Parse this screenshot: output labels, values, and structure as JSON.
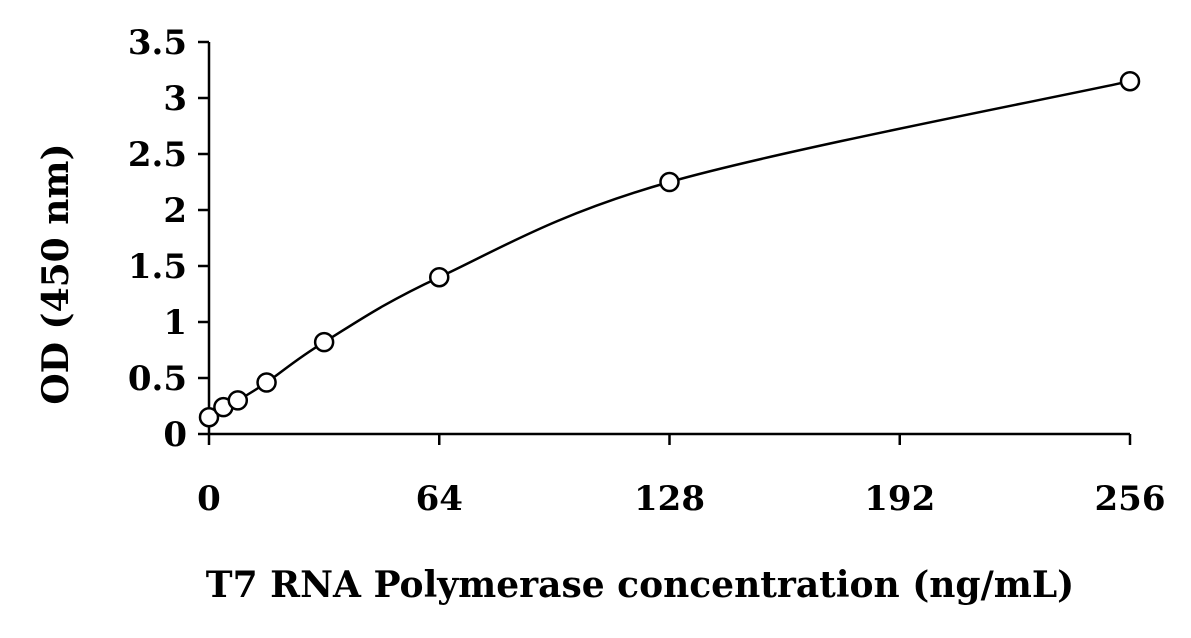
{
  "chart_data": {
    "type": "scatter",
    "xlabel": "T7 RNA Polymerase concentration (ng/mL)",
    "ylabel": "OD (450 nm)",
    "xlim": [
      0,
      256
    ],
    "ylim": [
      0,
      3.5
    ],
    "x_ticks": [
      0,
      64,
      128,
      192,
      256
    ],
    "x_tick_labels": [
      "0",
      "64",
      "128",
      "192",
      "256"
    ],
    "y_ticks": [
      0,
      0.5,
      1,
      1.5,
      2,
      2.5,
      3,
      3.5
    ],
    "y_tick_labels": [
      "0",
      "0.5",
      "1",
      "1.5",
      "2",
      "2.5",
      "3",
      "3.5"
    ],
    "grid": false,
    "series": [
      {
        "x": [
          0,
          4,
          8,
          16,
          32,
          64,
          128,
          256
        ],
        "y": [
          0.15,
          0.24,
          0.3,
          0.46,
          0.82,
          1.4,
          2.25,
          3.15
        ],
        "marker": "open-circle",
        "fit_line": "smooth-curve",
        "color": "#000000"
      }
    ]
  }
}
